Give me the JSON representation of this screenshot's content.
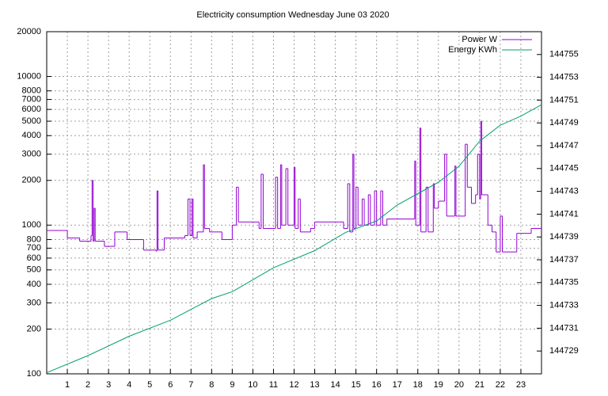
{
  "chart_data": {
    "type": "step-line",
    "title": "Electricity consumption Wednesday June 03 2020",
    "xlim": [
      0,
      24
    ],
    "xticks": [
      1,
      2,
      3,
      4,
      5,
      6,
      7,
      8,
      9,
      10,
      11,
      12,
      13,
      14,
      15,
      16,
      17,
      18,
      19,
      20,
      21,
      22,
      23
    ],
    "ylim": [
      100,
      20000
    ],
    "yscale": "log",
    "yticks": [
      100,
      200,
      300,
      400,
      500,
      600,
      700,
      800,
      1000,
      2000,
      3000,
      4000,
      5000,
      6000,
      7000,
      8000,
      10000,
      20000
    ],
    "y2lim": [
      144727,
      144757
    ],
    "y2ticks": [
      144729,
      144731,
      144733,
      144735,
      144737,
      144739,
      144741,
      144743,
      144745,
      144747,
      144749,
      144751,
      144753,
      144755
    ],
    "grid": true,
    "legend": "top-right",
    "series": [
      {
        "name": "Power W",
        "color": "#9400d3",
        "x": [
          0,
          1,
          1.6,
          2.15,
          2.2,
          2.25,
          2.3,
          2.35,
          2.8,
          3.3,
          3.9,
          4.7,
          5.3,
          5.35,
          5.4,
          5.7,
          6.7,
          6.85,
          6.95,
          7.05,
          7.1,
          7.3,
          7.6,
          7.65,
          7.9,
          8.5,
          9.0,
          9.2,
          9.3,
          10,
          10.3,
          10.4,
          10.5,
          11.0,
          11.1,
          11.2,
          11.35,
          11.4,
          11.6,
          11.7,
          11.9,
          12.0,
          12.05,
          12.2,
          12.3,
          12.8,
          13.0,
          14.2,
          14.4,
          14.6,
          14.7,
          14.85,
          14.9,
          15.0,
          15.1,
          15.3,
          15.4,
          15.6,
          15.7,
          15.9,
          16.0,
          16.2,
          16.3,
          16.5,
          17.0,
          17.85,
          17.9,
          18.1,
          18.15,
          18.4,
          18.5,
          18.75,
          18.8,
          19.0,
          19.3,
          19.4,
          19.8,
          19.85,
          20.3,
          20.4,
          20.6,
          20.8,
          20.9,
          21.0,
          21.05,
          21.1,
          21.4,
          21.6,
          21.8,
          22.0,
          22.1,
          22.8,
          23.5,
          24
        ],
        "values": [
          920,
          820,
          780,
          850,
          2000,
          780,
          1300,
          780,
          720,
          900,
          800,
          680,
          670,
          1700,
          680,
          820,
          850,
          1500,
          850,
          1500,
          820,
          900,
          2550,
          950,
          900,
          800,
          1000,
          1800,
          1050,
          1050,
          950,
          2200,
          950,
          950,
          2100,
          950,
          2550,
          1000,
          2400,
          1000,
          1000,
          2450,
          950,
          1500,
          900,
          950,
          1050,
          1050,
          950,
          1900,
          900,
          3000,
          950,
          1800,
          1000,
          1500,
          1000,
          1600,
          1000,
          1700,
          1000,
          1700,
          1000,
          1100,
          1100,
          2700,
          1000,
          4500,
          900,
          1800,
          900,
          1900,
          1300,
          1450,
          3000,
          1150,
          2500,
          1150,
          3500,
          1800,
          1400,
          1600,
          3000,
          1500,
          5000,
          1600,
          1000,
          900,
          660,
          1150,
          660,
          880,
          950,
          950
        ]
      },
      {
        "name": "Energy KWh",
        "color": "#009e73",
        "axis": "y2",
        "x": [
          0,
          2,
          4,
          6,
          8,
          9,
          11,
          13,
          14.5,
          16,
          17,
          18,
          19,
          20,
          21,
          22,
          23,
          24
        ],
        "values": [
          144727.1,
          144728.6,
          144730.3,
          144731.7,
          144733.6,
          144734.2,
          144736.3,
          144737.8,
          144739.4,
          144740.4,
          144741.8,
          144742.8,
          144743.8,
          144745.2,
          144747.4,
          144748.8,
          144749.6,
          144750.6
        ]
      }
    ]
  }
}
